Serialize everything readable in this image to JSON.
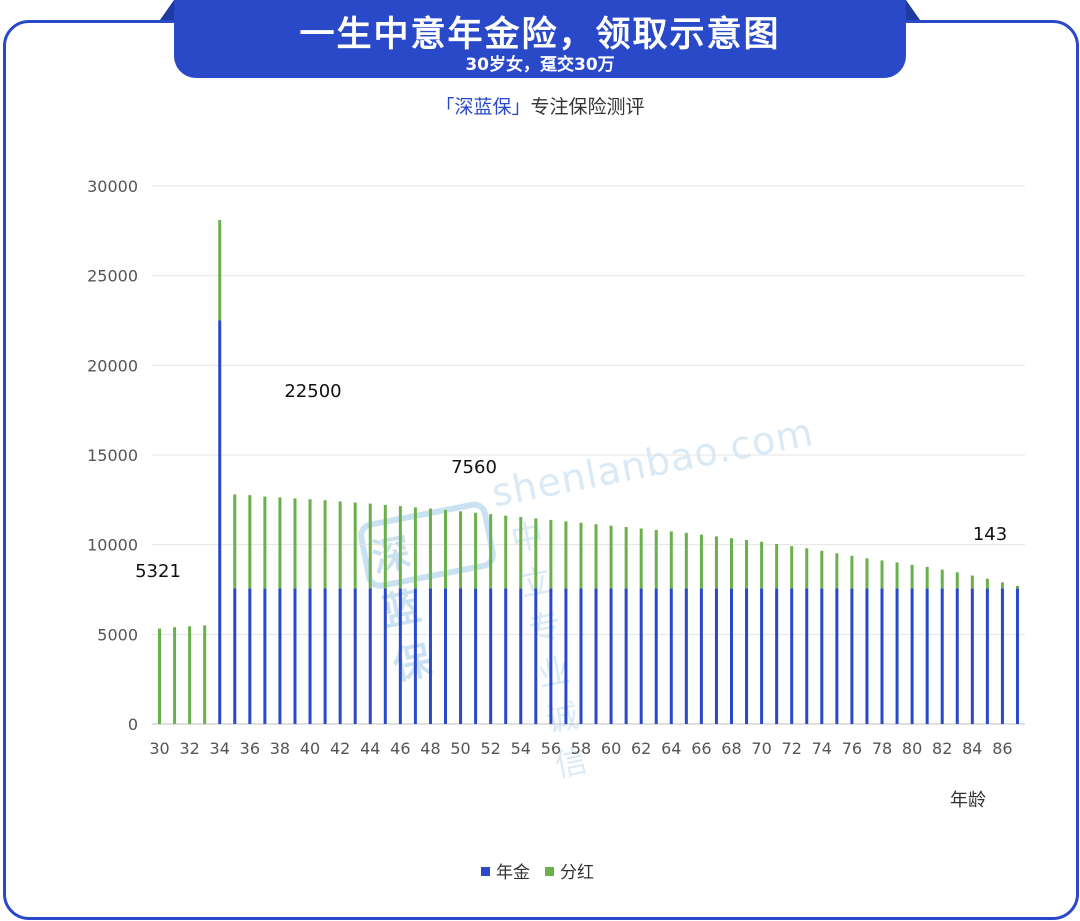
{
  "header": {
    "title": "一生中意年金险，领取示意图",
    "subtitle": "30岁女，趸交30万",
    "brand_bracketed": "「深蓝保」",
    "brand_slogan": "专注保险测评"
  },
  "watermark": {
    "logo": "深蓝保",
    "url": "shenlanbao.com",
    "slogan": "中立 专业 诚信"
  },
  "colors": {
    "annuity": "#2a49c9",
    "dividend": "#6ab04c",
    "frame": "#2a49c9"
  },
  "chart_data": {
    "type": "bar",
    "stacked": true,
    "x_start": 30,
    "x_end": 87,
    "xlabel": "年龄",
    "ylim": [
      0,
      30000
    ],
    "yticks": [
      0,
      5000,
      10000,
      15000,
      20000,
      25000,
      30000
    ],
    "xtick_labels": [
      "30",
      "32",
      "34",
      "36",
      "38",
      "40",
      "42",
      "44",
      "46",
      "48",
      "50",
      "52",
      "54",
      "56",
      "58",
      "60",
      "62",
      "64",
      "66",
      "68",
      "70",
      "72",
      "74",
      "76",
      "78",
      "80",
      "82",
      "84",
      "86"
    ],
    "grid": true,
    "legend_position": "bottom",
    "series": [
      {
        "name": "年金",
        "values": [
          0,
          0,
          0,
          0,
          22500,
          7560,
          7560,
          7560,
          7560,
          7560,
          7560,
          7560,
          7560,
          7560,
          7560,
          7560,
          7560,
          7560,
          7560,
          7560,
          7560,
          7560,
          7560,
          7560,
          7560,
          7560,
          7560,
          7560,
          7560,
          7560,
          7560,
          7560,
          7560,
          7560,
          7560,
          7560,
          7560,
          7560,
          7560,
          7560,
          7560,
          7560,
          7560,
          7560,
          7560,
          7560,
          7560,
          7560,
          7560,
          7560,
          7560,
          7560,
          7560,
          7560,
          7560,
          7560,
          7560,
          7560
        ]
      },
      {
        "name": "分红",
        "values": [
          5321,
          5400,
          5450,
          5500,
          5600,
          5240,
          5200,
          5120,
          5080,
          5020,
          4970,
          4920,
          4850,
          4790,
          4730,
          4660,
          4590,
          4520,
          4450,
          4380,
          4300,
          4220,
          4140,
          4060,
          3980,
          3900,
          3820,
          3740,
          3660,
          3580,
          3500,
          3420,
          3340,
          3260,
          3180,
          3100,
          3000,
          2900,
          2800,
          2700,
          2600,
          2480,
          2360,
          2240,
          2100,
          1960,
          1820,
          1680,
          1560,
          1450,
          1320,
          1200,
          1050,
          900,
          720,
          540,
          340,
          143
        ]
      }
    ],
    "annotations": [
      {
        "text": "5321",
        "age": 30,
        "value": 5321
      },
      {
        "text": "22500",
        "age": 34,
        "value": 22500
      },
      {
        "text": "7560",
        "age": 50,
        "value": 7560
      },
      {
        "text": "143",
        "age": 87,
        "value": 143
      }
    ]
  }
}
